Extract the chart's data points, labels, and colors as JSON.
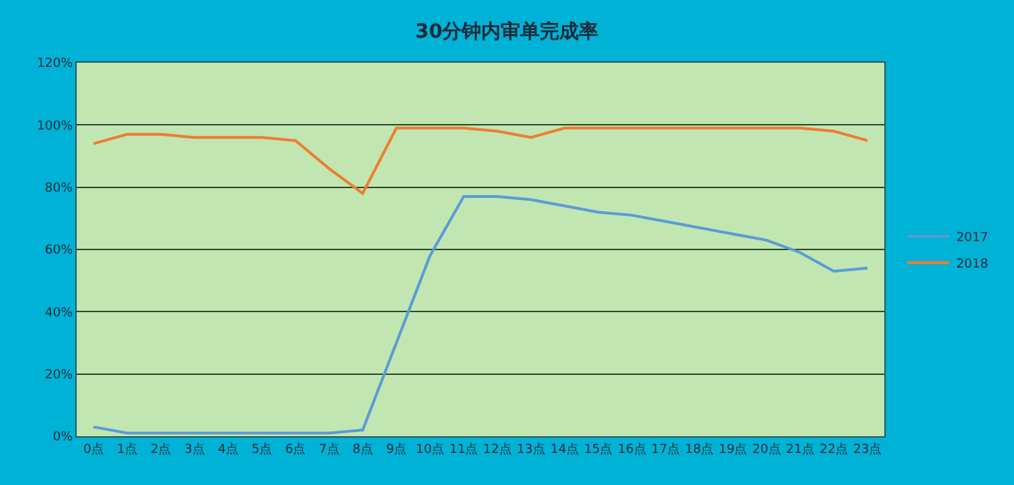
{
  "chart_data": {
    "type": "line",
    "title": "30分钟内审单完成率",
    "categories": [
      "0点",
      "1点",
      "2点",
      "3点",
      "4点",
      "5点",
      "6点",
      "7点",
      "8点",
      "9点",
      "10点",
      "11点",
      "12点",
      "13点",
      "14点",
      "15点",
      "16点",
      "17点",
      "18点",
      "19点",
      "20点",
      "21点",
      "22点",
      "23点"
    ],
    "series": [
      {
        "name": "2017",
        "color": "#5b9bd5",
        "values": [
          3,
          1,
          1,
          1,
          1,
          1,
          1,
          1,
          2,
          30,
          58,
          77,
          77,
          76,
          74,
          72,
          71,
          69,
          67,
          65,
          63,
          59,
          53,
          54
        ]
      },
      {
        "name": "2018",
        "color": "#ed7d31",
        "values": [
          94,
          97,
          97,
          96,
          96,
          96,
          95,
          86,
          78,
          99,
          99,
          99,
          98,
          96,
          99,
          99,
          99,
          99,
          99,
          99,
          99,
          99,
          98,
          95
        ]
      }
    ],
    "ylim": [
      0,
      120
    ],
    "yticks": [
      {
        "value": 0,
        "label": "0%"
      },
      {
        "value": 20,
        "label": "20%"
      },
      {
        "value": 40,
        "label": "40%"
      },
      {
        "value": 60,
        "label": "60%"
      },
      {
        "value": 80,
        "label": "80%"
      },
      {
        "value": 100,
        "label": "100%"
      },
      {
        "value": 120,
        "label": "120%"
      }
    ],
    "grid": "y",
    "legend": "right",
    "marker": "none",
    "line_style": "solid"
  }
}
